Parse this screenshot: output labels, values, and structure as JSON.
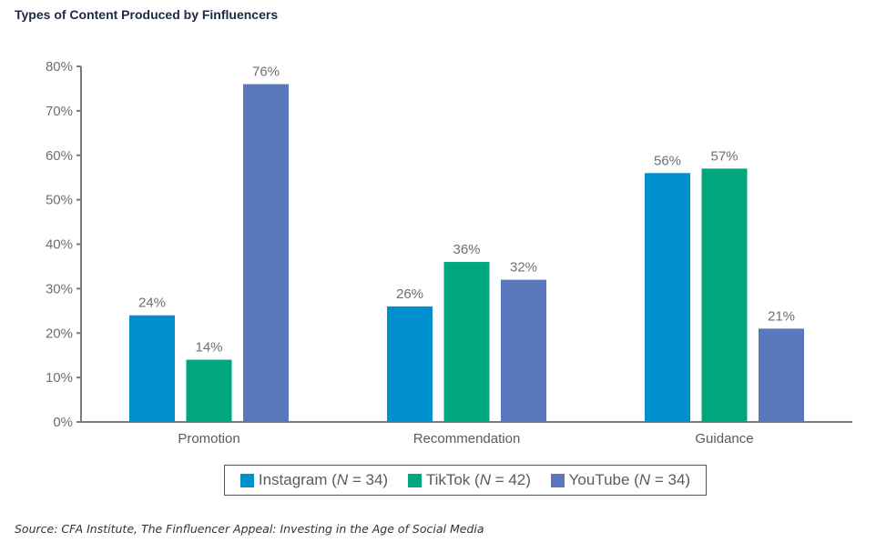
{
  "chart_data": {
    "type": "bar",
    "title": "Types of Content Produced by Finfluencers",
    "xlabel": "",
    "ylabel": "",
    "ylim": [
      0,
      80
    ],
    "yticks": [
      "0%",
      "10%",
      "20%",
      "30%",
      "40%",
      "50%",
      "60%",
      "70%",
      "80%"
    ],
    "ytick_values": [
      0,
      10,
      20,
      30,
      40,
      50,
      60,
      70,
      80
    ],
    "grid": false,
    "categories": [
      "Promotion",
      "Recommendation",
      "Guidance"
    ],
    "series": [
      {
        "name": "Instagram (N = 34)",
        "color": "#0090d0",
        "values": [
          24,
          26,
          56
        ],
        "labels": [
          "24%",
          "26%",
          "56%"
        ]
      },
      {
        "name": "TikTok (N = 42)",
        "color": "#00a67e",
        "values": [
          14,
          36,
          57
        ],
        "labels": [
          "14%",
          "36%",
          "57%"
        ]
      },
      {
        "name": "YouTube (N = 34)",
        "color": "#5a78be",
        "values": [
          76,
          32,
          21
        ],
        "labels": [
          "76%",
          "32%",
          "21%"
        ]
      }
    ],
    "legend_position": "bottom"
  },
  "legend": [
    {
      "prefix": "Instagram (",
      "n": "N",
      "suffix": " = 34)"
    },
    {
      "prefix": "TikTok (",
      "n": "N",
      "suffix": " = 42)"
    },
    {
      "prefix": "YouTube (",
      "n": "N",
      "suffix": " = 34)"
    }
  ],
  "source": "Source: CFA Institute, The Finfluencer Appeal: Investing in the Age of Social Media"
}
